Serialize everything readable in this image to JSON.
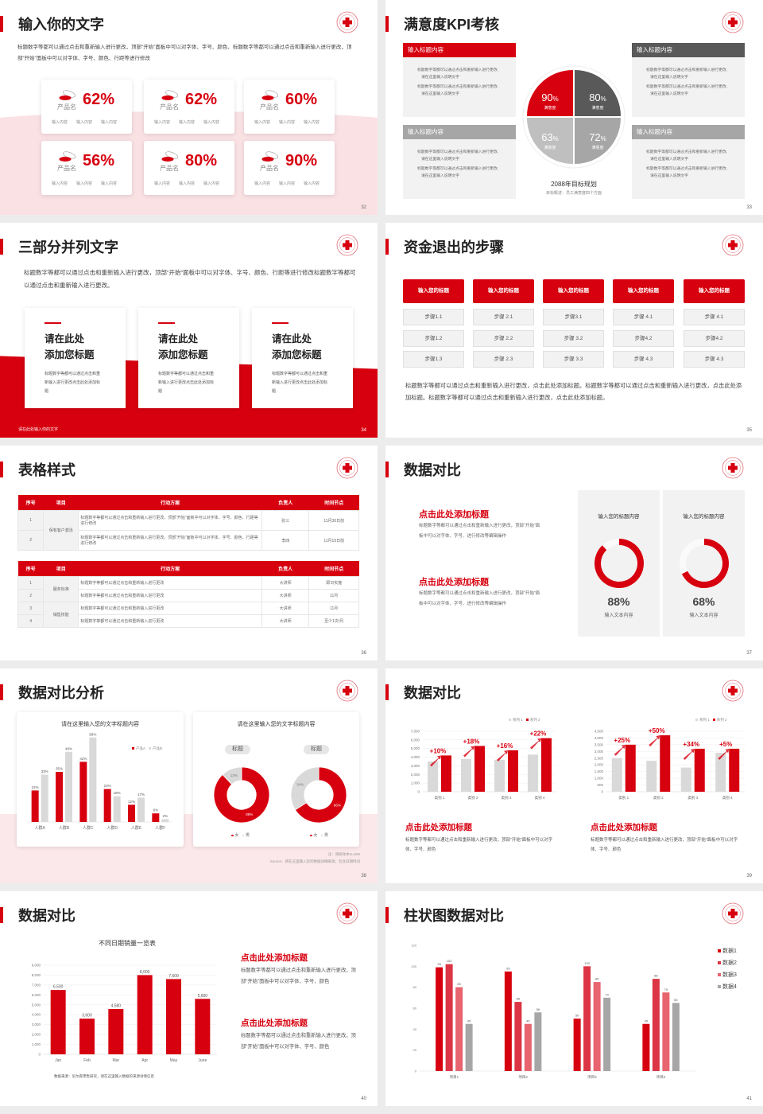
{
  "colors": {
    "accent": "#d7000f",
    "dark_gray": "#595959",
    "mid_gray": "#a6a6a6",
    "light_gray": "#d9d9d9",
    "panel": "#f2f2f2"
  },
  "logo_icon": "red-cross-seal-icon",
  "s32": {
    "title": "输入你的文字",
    "page": "32",
    "para": "标题数字等都可以通过点击和重新输入进行更改，顶部“开始”面板中可以对字体、字号、颜色、标题数字等都可以通过点击和重新输入进行更改，顶部“开始”面板中可以对字体、字号、颜色、行距等进行修改",
    "cards": [
      {
        "value": "62%",
        "name": "产品名",
        "items": [
          "输入内容",
          "输入内容",
          "输入内容"
        ]
      },
      {
        "value": "62%",
        "name": "产品名",
        "items": [
          "输入内容",
          "输入内容",
          "输入内容"
        ]
      },
      {
        "value": "60%",
        "name": "产品名",
        "items": [
          "输入内容",
          "输入内容",
          "输入内容"
        ]
      },
      {
        "value": "56%",
        "name": "产品名",
        "items": [
          "输入内容",
          "输入内容",
          "输入内容"
        ]
      },
      {
        "value": "80%",
        "name": "产品名",
        "items": [
          "输入内容",
          "输入内容",
          "输入内容"
        ]
      },
      {
        "value": "90%",
        "name": "产品名",
        "items": [
          "输入内容",
          "输入内容",
          "输入内容"
        ]
      }
    ],
    "card_icon": "pill-icon"
  },
  "s33": {
    "title": "满意度KPI考核",
    "page": "33",
    "boxes": [
      {
        "header": "输入标题内容",
        "bullets": [
          "标题数字等都可以通过点击和重新输入进行更改,请在这里输入说明文字",
          "标题数字等都可以通过点击和重新输入进行更改,请在这里输入说明文字"
        ]
      },
      {
        "header": "输入标题内容",
        "bullets": [
          "标题数字等都可以通过点击和重新输入进行更改,请在这里输入说明文字",
          "标题数字等都可以通过点击和重新输入进行更改,请在这里输入说明文字"
        ]
      },
      {
        "header": "输入标题内容",
        "bullets": [
          "标题数字等都可以通过点击和重新输入进行更改,请在这里输入说明文字",
          "标题数字等都可以通过点击和重新输入进行更改,请在这里输入说明文字"
        ]
      },
      {
        "header": "输入标题内容",
        "bullets": [
          "标题数字等都可以通过点击和重新输入进行更改,请在这里输入说明文字",
          "标题数字等都可以通过点击和重新输入进行更改,请在这里输入说明文字"
        ]
      }
    ],
    "quadrants": [
      {
        "value": "90",
        "unit": "%",
        "label": "满意度"
      },
      {
        "value": "80",
        "unit": "%",
        "label": "满意度"
      },
      {
        "value": "63",
        "unit": "%",
        "label": "满意度"
      },
      {
        "value": "72",
        "unit": "%",
        "label": "满意度"
      }
    ],
    "goal": "2088年目标规划",
    "goal_sub": "目标概述：员工满意度四个方面"
  },
  "s34": {
    "title": "三部分并列文字",
    "page": "34",
    "para": "标题数字等都可以通过点击和重新输入进行更改，顶部“开始”面板中可以对字体、字号、颜色、行距等进行修改标题数字等都可以通过点击和重新输入进行更改。",
    "cards": [
      {
        "title1": "请在此处",
        "title2": "添加您标题",
        "body": "标题数字等都可以通过点击和重新输入进行更改点击此处添加标题"
      },
      {
        "title1": "请在此处",
        "title2": "添加您标题",
        "body": "标题数字等都可以通过点击和重新输入进行更改点击此处添加标题"
      },
      {
        "title1": "请在此处",
        "title2": "添加您标题",
        "body": "标题数字等都可以通过点击和重新输入进行更改点击此处添加标题"
      }
    ],
    "footer": "请在此处输入你的文字"
  },
  "s35": {
    "title": "资金退出的步骤",
    "page": "35",
    "columns": [
      {
        "header": "输入您的标题",
        "steps": [
          "步骤1.1",
          "步骤1.2",
          "步骤1.3"
        ]
      },
      {
        "header": "输入您的标题",
        "steps": [
          "步骤 2.1",
          "步骤 2.2",
          "步骤 2.3"
        ]
      },
      {
        "header": "输入您的标题",
        "steps": [
          "步骤3.1",
          "步骤 3.2",
          "步骤 3.3"
        ]
      },
      {
        "header": "输入您的标题",
        "steps": [
          "步骤 4.1",
          "步骤4.2",
          "步骤 4.3"
        ]
      },
      {
        "header": "输入您的标题",
        "steps": [
          "步骤 4.1",
          "步骤4.2",
          "步骤 4.3"
        ]
      }
    ],
    "para": "标题数字等都可以通过点击和重新输入进行更改，点击此处添加标题。标题数字等都可以通过点击和重新输入进行更改，点击此处添加标题。标题数字等都可以通过点击和重新输入进行更改，点击此处添加标题。"
  },
  "s36": {
    "title": "表格样式",
    "page": "36",
    "headers": [
      "序号",
      "项目",
      "行动方案",
      "负责人",
      "时间节点"
    ],
    "table1": {
      "group": "保有客户激活",
      "rows": [
        [
          "1",
          "标题数字等都可以通过点击和重新输入进行更改，顶部“开始”面板中可以对字体、字号、颜色、行距等进行修改",
          "张三",
          "11月30日前"
        ],
        [
          "2",
          "标题数字等都可以通过点击和重新输入进行更改，顶部“开始”面板中可以对字体、字号、颜色、行距等进行修改",
          "李四",
          "11月15日前"
        ]
      ]
    },
    "table2": {
      "groups": [
        "服务标准",
        "销售技能"
      ],
      "rows": [
        [
          "1",
          "标题数字等都可以通过点击和重新输入进行更改",
          "大讲师",
          "即日实施"
        ],
        [
          "2",
          "标题数字等都可以通过点击和重新输入进行更改",
          "大讲师",
          "11月"
        ],
        [
          "3",
          "标题数字等都可以通过点击和重新输入进行更改",
          "大讲师",
          "11月"
        ],
        [
          "4",
          "标题数字等都可以通过点击和重新输入进行更改",
          "大讲师",
          "至少1次/月"
        ]
      ]
    }
  },
  "s37": {
    "title": "数据对比",
    "page": "37",
    "blocks": [
      {
        "title": "点击此处添加标题",
        "body": "标题数字等都可以通过点击和重新输入进行更改，顶部“开始”面板中可以对字体、字号、进行修改等编辑操作"
      },
      {
        "title": "点击此处添加标题",
        "body": "标题数字等都可以通过点击和重新输入进行更改，顶部“开始”面板中可以对字体、字号、进行修改等编辑操作"
      }
    ],
    "rings": [
      {
        "heading": "输入您的标题内容",
        "value": 88,
        "label": "88%",
        "caption": "输入文本内容"
      },
      {
        "heading": "输入您的标题内容",
        "value": 68,
        "label": "68%",
        "caption": "输入文本内容"
      }
    ]
  },
  "s38": {
    "title": "数据对比分析",
    "page": "38",
    "card1_title": "请在这里输入您的文字标题内容",
    "card2_title": "请在这里输入您的文字标题内容",
    "donut_tags": [
      "标题",
      "标题"
    ],
    "note": "注：调研样本N=500",
    "source": "Source：请在这里输入您的数据详细来源，包含日期时间"
  },
  "s39": {
    "title": "数据对比",
    "page": "39",
    "blocks": [
      {
        "title": "点击此处添加标题",
        "body": "标题数字等都可以通过点击和重新输入进行更改，顶部“开始”面板中可以对字体、字号、颜色"
      },
      {
        "title": "点击此处添加标题",
        "body": "标题数字等都可以通过点击和重新输入进行更改，顶部“开始”面板中可以对字体、字号、颜色"
      }
    ]
  },
  "s40": {
    "title": "数据对比",
    "page": "40",
    "blocks": [
      {
        "title": "点击此处添加标题",
        "body": "标题数字等都可以通过点击和重新输入进行更改，顶部“开始”面板中可以对字体、字号、颜色"
      },
      {
        "title": "点击此处添加标题",
        "body": "标题数字等都可以通过点击和重新输入进行更改，顶部“开始”面板中可以对字体、字号、颜色"
      }
    ]
  },
  "s41": {
    "title": "柱状图数据对比",
    "page": "41"
  },
  "chart_data": [
    {
      "type": "bar",
      "slide": "38",
      "categories": [
        "人群A",
        "人群B",
        "人群C",
        "人群D",
        "人群E",
        "人群F"
      ],
      "series": [
        {
          "name": "产品A",
          "values": [
            22,
            35,
            42,
            23,
            12,
            6
          ],
          "color": "#d7000f"
        },
        {
          "name": "产品B",
          "values": [
            33,
            49,
            59,
            18,
            17,
            2
          ],
          "color": "#d9d9d9"
        }
      ],
      "data_labels": "percent",
      "ylim": [
        0,
        60
      ],
      "axis": "hidden",
      "legend": "top-right"
    },
    {
      "type": "pie",
      "slide": "38",
      "donut": true,
      "slices": [
        {
          "name": "女",
          "value": 88,
          "label": "88%",
          "color": "#d7000f"
        },
        {
          "name": "男",
          "value": 12,
          "label": "12%",
          "color": "#d9d9d9"
        }
      ],
      "legend": "bottom"
    },
    {
      "type": "pie",
      "slide": "38",
      "donut": true,
      "slices": [
        {
          "name": "女",
          "value": 66,
          "label": "66%",
          "color": "#d7000f"
        },
        {
          "name": "男",
          "value": 34,
          "label": "34%",
          "color": "#d9d9d9"
        }
      ],
      "legend": "bottom"
    },
    {
      "type": "bar",
      "slide": "39",
      "categories": [
        "类别 1",
        "类别 2",
        "类别 3",
        "类别 4"
      ],
      "series": [
        {
          "name": "系列 1",
          "values": [
            3500,
            3800,
            3700,
            4300
          ],
          "color": "#d9d9d9"
        },
        {
          "name": "系列 2",
          "values": [
            4200,
            5300,
            4800,
            6200
          ],
          "color": "#d7000f"
        }
      ],
      "annotations": [
        "+10%",
        "+18%",
        "+16%",
        "+22%"
      ],
      "ylim": [
        0,
        7000
      ],
      "yticks": [
        "0",
        "1,000",
        "2,000",
        "3,000",
        "4,000",
        "5,000",
        "6,000",
        "7,000"
      ],
      "grid": true,
      "legend": "top-right"
    },
    {
      "type": "bar",
      "slide": "39",
      "categories": [
        "类别 1",
        "类别 2",
        "类别 3",
        "类别 4"
      ],
      "series": [
        {
          "name": "系列 1",
          "values": [
            2500,
            2300,
            1800,
            2900
          ],
          "color": "#d9d9d9"
        },
        {
          "name": "系列 2",
          "values": [
            3500,
            4200,
            3200,
            3200
          ],
          "color": "#d7000f"
        }
      ],
      "annotations": [
        "+25%",
        "+50%",
        "+34%",
        "+5%"
      ],
      "ylim": [
        0,
        4500
      ],
      "yticks": [
        "0",
        "500",
        "1,000",
        "1,500",
        "2,000",
        "2,500",
        "3,000",
        "3,500",
        "4,000",
        "4,500"
      ],
      "grid": true,
      "legend": "top-right"
    },
    {
      "type": "bar",
      "slide": "40",
      "title": "不同日期销量一览表",
      "categories": [
        "Jan",
        "Feb",
        "Mar",
        "Apr",
        "May",
        "June"
      ],
      "series": [
        {
          "values": [
            6500,
            3600,
            4580,
            8000,
            7600,
            5600
          ],
          "color": "#d7000f"
        }
      ],
      "value_labels": [
        "6,500",
        "3,600",
        "4,580",
        "8,000",
        "7,600",
        "5,600"
      ],
      "ylim": [
        0,
        9000
      ],
      "yticks": [
        "0",
        "1,000",
        "2,000",
        "3,000",
        "4,000",
        "5,000",
        "6,000",
        "7,000",
        "8,000",
        "9,000"
      ],
      "grid": true,
      "source": "数据来源：尼尔森零售研究，请在这里输入数据的来源详情信息"
    },
    {
      "type": "bar",
      "slide": "41",
      "categories": [
        "项目1",
        "项目2",
        "项目3",
        "项目4"
      ],
      "series": [
        {
          "name": "数据1",
          "values": [
            99,
            95,
            50,
            45
          ],
          "color": "#d7000f"
        },
        {
          "name": "数据2",
          "values": [
            102,
            66,
            100,
            88
          ],
          "color": "#dc3545"
        },
        {
          "name": "数据3",
          "values": [
            80,
            45,
            85,
            75
          ],
          "color": "#e8646f"
        },
        {
          "name": "数据4",
          "values": [
            45,
            56,
            70,
            65
          ],
          "color": "#a6a6a6"
        }
      ],
      "data_labels": "value",
      "ylim": [
        0,
        120
      ],
      "yticks": [
        "0",
        "20",
        "40",
        "60",
        "80",
        "100",
        "120"
      ],
      "legend": "right"
    }
  ]
}
